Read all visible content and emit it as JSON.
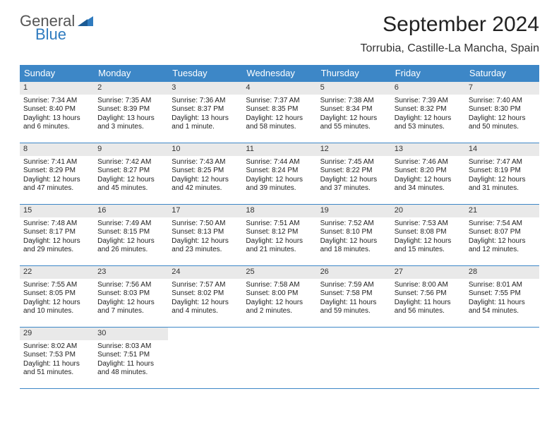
{
  "brand": {
    "name1": "General",
    "name2": "Blue"
  },
  "title": "September 2024",
  "location": "Torrubia, Castille-La Mancha, Spain",
  "colors": {
    "header_bg": "#3d87c7",
    "daynum_bg": "#e9e9e9",
    "rule": "#3d87c7",
    "text": "#222222",
    "logo_gray": "#555555",
    "logo_blue": "#2f7bbf"
  },
  "weekdays": [
    "Sunday",
    "Monday",
    "Tuesday",
    "Wednesday",
    "Thursday",
    "Friday",
    "Saturday"
  ],
  "weeks": [
    [
      {
        "n": "1",
        "sr": "Sunrise: 7:34 AM",
        "ss": "Sunset: 8:40 PM",
        "dl1": "Daylight: 13 hours",
        "dl2": "and 6 minutes."
      },
      {
        "n": "2",
        "sr": "Sunrise: 7:35 AM",
        "ss": "Sunset: 8:39 PM",
        "dl1": "Daylight: 13 hours",
        "dl2": "and 3 minutes."
      },
      {
        "n": "3",
        "sr": "Sunrise: 7:36 AM",
        "ss": "Sunset: 8:37 PM",
        "dl1": "Daylight: 13 hours",
        "dl2": "and 1 minute."
      },
      {
        "n": "4",
        "sr": "Sunrise: 7:37 AM",
        "ss": "Sunset: 8:35 PM",
        "dl1": "Daylight: 12 hours",
        "dl2": "and 58 minutes."
      },
      {
        "n": "5",
        "sr": "Sunrise: 7:38 AM",
        "ss": "Sunset: 8:34 PM",
        "dl1": "Daylight: 12 hours",
        "dl2": "and 55 minutes."
      },
      {
        "n": "6",
        "sr": "Sunrise: 7:39 AM",
        "ss": "Sunset: 8:32 PM",
        "dl1": "Daylight: 12 hours",
        "dl2": "and 53 minutes."
      },
      {
        "n": "7",
        "sr": "Sunrise: 7:40 AM",
        "ss": "Sunset: 8:30 PM",
        "dl1": "Daylight: 12 hours",
        "dl2": "and 50 minutes."
      }
    ],
    [
      {
        "n": "8",
        "sr": "Sunrise: 7:41 AM",
        "ss": "Sunset: 8:29 PM",
        "dl1": "Daylight: 12 hours",
        "dl2": "and 47 minutes."
      },
      {
        "n": "9",
        "sr": "Sunrise: 7:42 AM",
        "ss": "Sunset: 8:27 PM",
        "dl1": "Daylight: 12 hours",
        "dl2": "and 45 minutes."
      },
      {
        "n": "10",
        "sr": "Sunrise: 7:43 AM",
        "ss": "Sunset: 8:25 PM",
        "dl1": "Daylight: 12 hours",
        "dl2": "and 42 minutes."
      },
      {
        "n": "11",
        "sr": "Sunrise: 7:44 AM",
        "ss": "Sunset: 8:24 PM",
        "dl1": "Daylight: 12 hours",
        "dl2": "and 39 minutes."
      },
      {
        "n": "12",
        "sr": "Sunrise: 7:45 AM",
        "ss": "Sunset: 8:22 PM",
        "dl1": "Daylight: 12 hours",
        "dl2": "and 37 minutes."
      },
      {
        "n": "13",
        "sr": "Sunrise: 7:46 AM",
        "ss": "Sunset: 8:20 PM",
        "dl1": "Daylight: 12 hours",
        "dl2": "and 34 minutes."
      },
      {
        "n": "14",
        "sr": "Sunrise: 7:47 AM",
        "ss": "Sunset: 8:19 PM",
        "dl1": "Daylight: 12 hours",
        "dl2": "and 31 minutes."
      }
    ],
    [
      {
        "n": "15",
        "sr": "Sunrise: 7:48 AM",
        "ss": "Sunset: 8:17 PM",
        "dl1": "Daylight: 12 hours",
        "dl2": "and 29 minutes."
      },
      {
        "n": "16",
        "sr": "Sunrise: 7:49 AM",
        "ss": "Sunset: 8:15 PM",
        "dl1": "Daylight: 12 hours",
        "dl2": "and 26 minutes."
      },
      {
        "n": "17",
        "sr": "Sunrise: 7:50 AM",
        "ss": "Sunset: 8:13 PM",
        "dl1": "Daylight: 12 hours",
        "dl2": "and 23 minutes."
      },
      {
        "n": "18",
        "sr": "Sunrise: 7:51 AM",
        "ss": "Sunset: 8:12 PM",
        "dl1": "Daylight: 12 hours",
        "dl2": "and 21 minutes."
      },
      {
        "n": "19",
        "sr": "Sunrise: 7:52 AM",
        "ss": "Sunset: 8:10 PM",
        "dl1": "Daylight: 12 hours",
        "dl2": "and 18 minutes."
      },
      {
        "n": "20",
        "sr": "Sunrise: 7:53 AM",
        "ss": "Sunset: 8:08 PM",
        "dl1": "Daylight: 12 hours",
        "dl2": "and 15 minutes."
      },
      {
        "n": "21",
        "sr": "Sunrise: 7:54 AM",
        "ss": "Sunset: 8:07 PM",
        "dl1": "Daylight: 12 hours",
        "dl2": "and 12 minutes."
      }
    ],
    [
      {
        "n": "22",
        "sr": "Sunrise: 7:55 AM",
        "ss": "Sunset: 8:05 PM",
        "dl1": "Daylight: 12 hours",
        "dl2": "and 10 minutes."
      },
      {
        "n": "23",
        "sr": "Sunrise: 7:56 AM",
        "ss": "Sunset: 8:03 PM",
        "dl1": "Daylight: 12 hours",
        "dl2": "and 7 minutes."
      },
      {
        "n": "24",
        "sr": "Sunrise: 7:57 AM",
        "ss": "Sunset: 8:02 PM",
        "dl1": "Daylight: 12 hours",
        "dl2": "and 4 minutes."
      },
      {
        "n": "25",
        "sr": "Sunrise: 7:58 AM",
        "ss": "Sunset: 8:00 PM",
        "dl1": "Daylight: 12 hours",
        "dl2": "and 2 minutes."
      },
      {
        "n": "26",
        "sr": "Sunrise: 7:59 AM",
        "ss": "Sunset: 7:58 PM",
        "dl1": "Daylight: 11 hours",
        "dl2": "and 59 minutes."
      },
      {
        "n": "27",
        "sr": "Sunrise: 8:00 AM",
        "ss": "Sunset: 7:56 PM",
        "dl1": "Daylight: 11 hours",
        "dl2": "and 56 minutes."
      },
      {
        "n": "28",
        "sr": "Sunrise: 8:01 AM",
        "ss": "Sunset: 7:55 PM",
        "dl1": "Daylight: 11 hours",
        "dl2": "and 54 minutes."
      }
    ],
    [
      {
        "n": "29",
        "sr": "Sunrise: 8:02 AM",
        "ss": "Sunset: 7:53 PM",
        "dl1": "Daylight: 11 hours",
        "dl2": "and 51 minutes."
      },
      {
        "n": "30",
        "sr": "Sunrise: 8:03 AM",
        "ss": "Sunset: 7:51 PM",
        "dl1": "Daylight: 11 hours",
        "dl2": "and 48 minutes."
      },
      null,
      null,
      null,
      null,
      null
    ]
  ]
}
